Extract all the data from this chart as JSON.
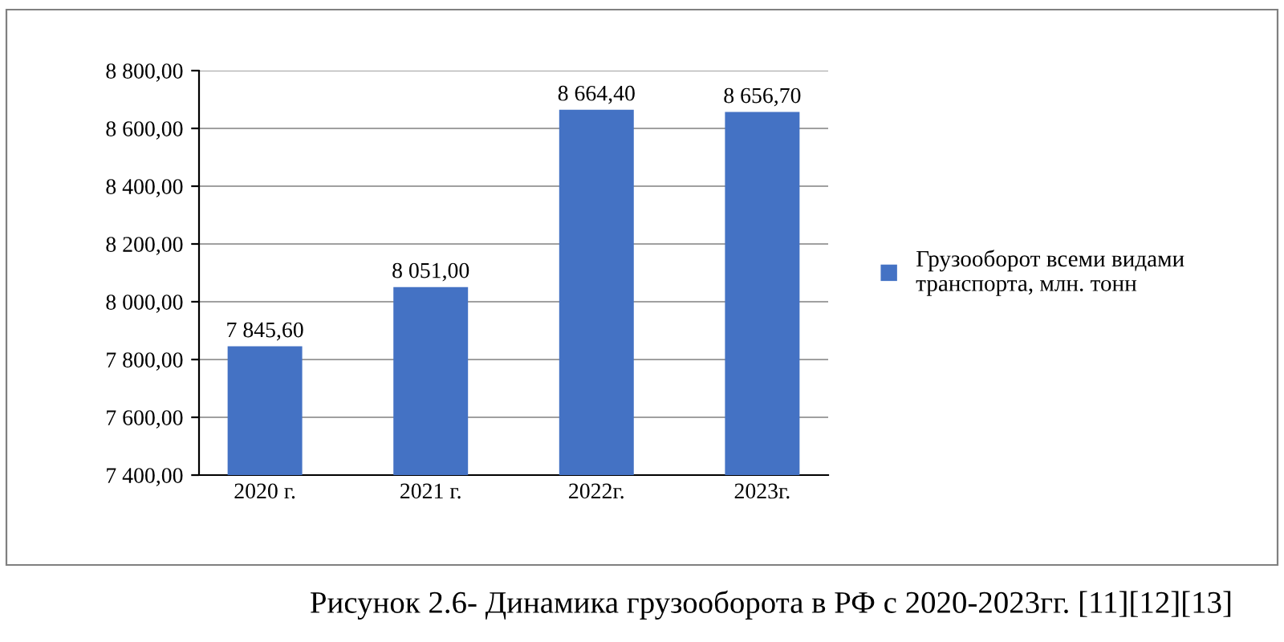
{
  "chart_data": {
    "type": "bar",
    "categories": [
      "2020 г.",
      "2021 г.",
      "2022г.",
      "2023г."
    ],
    "series": [
      {
        "name": "Грузооборот всеми видами транспорта, млн. тонн",
        "color": "#4472c4",
        "values": [
          7845.6,
          8051.0,
          8664.4,
          8656.7
        ],
        "value_labels": [
          "7 845,60",
          "8 051,00",
          "8 664,40",
          "8 656,70"
        ]
      }
    ],
    "ylim": [
      7400,
      8800
    ],
    "yticks": [
      {
        "value": 7400,
        "label": "7 400,00"
      },
      {
        "value": 7600,
        "label": "7 600,00"
      },
      {
        "value": 7800,
        "label": "7 800,00"
      },
      {
        "value": 8000,
        "label": "8 000,00"
      },
      {
        "value": 8200,
        "label": "8 200,00"
      },
      {
        "value": 8400,
        "label": "8 400,00"
      },
      {
        "value": 8600,
        "label": "8 600,00"
      },
      {
        "value": 8800,
        "label": "8 800,00"
      }
    ],
    "grid": "y",
    "legend": "right",
    "annotations": [
      "Рисунок 2.6- Динамика грузооборота в РФ с 2020-2023гг. [11][12][13]"
    ]
  }
}
